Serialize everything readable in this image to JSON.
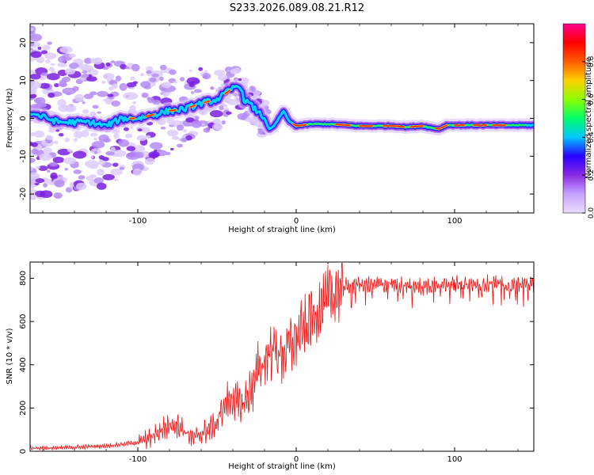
{
  "figure_title": "S233.2026.089.08.21.R12",
  "chart_data": [
    {
      "type": "heatmap",
      "name": "spectrogram",
      "xlabel": "Height of straight line (km)",
      "ylabel": "Frequency (Hz)",
      "xlim": [
        -168,
        150
      ],
      "ylim": [
        -25,
        25
      ],
      "xticks": [
        -100,
        0,
        100
      ],
      "yticks": [
        -20,
        -10,
        0,
        10,
        20
      ],
      "xtick_labels": [
        "-100",
        "0",
        "100"
      ],
      "ytick_labels": [
        "-20",
        "-10",
        "0",
        "10",
        "20"
      ],
      "ridge_line": {
        "x": [
          -168,
          -150,
          -130,
          -120,
          -110,
          -100,
          -90,
          -80,
          -70,
          -60,
          -50,
          -45,
          -40,
          -36,
          -33,
          -30,
          -25,
          -20,
          -17,
          -14,
          -11,
          -8,
          -5,
          -2,
          0,
          10,
          20,
          40,
          60,
          70,
          80,
          85,
          90,
          95,
          100,
          120,
          150
        ],
        "y": [
          1.5,
          -1,
          -1,
          -2,
          0,
          0,
          1,
          2,
          2.5,
          4,
          5,
          6.5,
          8,
          9,
          5,
          4,
          2,
          0,
          -3,
          -2,
          0,
          2,
          -0.5,
          -1.5,
          -2,
          -1.5,
          -1.5,
          -2,
          -2,
          -2.3,
          -2,
          -2.5,
          -2.8,
          -1.8,
          -1.8,
          -1.8,
          -1.8
        ]
      },
      "colorbar": {
        "label": "Normalized spectral amplitude",
        "range": [
          0,
          1
        ],
        "ticks": [
          0.0,
          0.2,
          0.4,
          0.6,
          0.8
        ],
        "tick_labels": [
          "0.0",
          "0.2",
          "0.4",
          "0.6",
          "0.8"
        ],
        "stops": [
          "#e9dcff",
          "#c5a4ff",
          "#8a2be2",
          "#2a00ff",
          "#00c8ff",
          "#00ff6a",
          "#8cff00",
          "#ffd000",
          "#ff5a00",
          "#ff0000",
          "#ff0090"
        ]
      }
    },
    {
      "type": "line",
      "name": "snr",
      "xlabel": "Height of straight line (km)",
      "ylabel": "SNR (10 * v/v)",
      "xlim": [
        -168,
        150
      ],
      "ylim": [
        0,
        875
      ],
      "xticks": [
        -100,
        0,
        100
      ],
      "yticks": [
        0,
        200,
        400,
        600,
        800
      ],
      "xtick_labels": [
        "-100",
        "0",
        "100"
      ],
      "ytick_labels": [
        "0",
        "200",
        "400",
        "600",
        "800"
      ],
      "color": "#ee1111",
      "series": [
        {
          "name": "SNR",
          "x": [
            -168,
            -150,
            -120,
            -100,
            -92,
            -85,
            -80,
            -75,
            -70,
            -65,
            -60,
            -55,
            -50,
            -45,
            -40,
            -35,
            -30,
            -25,
            -20,
            -15,
            -10,
            -5,
            0,
            5,
            10,
            15,
            20,
            25,
            30,
            40,
            60,
            80,
            90,
            100,
            110,
            120,
            150
          ],
          "values": [
            15,
            15,
            25,
            40,
            60,
            100,
            120,
            130,
            90,
            60,
            80,
            100,
            130,
            220,
            250,
            200,
            260,
            350,
            420,
            480,
            440,
            480,
            520,
            560,
            620,
            660,
            700,
            740,
            760,
            770,
            770,
            760,
            775,
            775,
            770,
            775,
            770
          ]
        }
      ]
    }
  ]
}
